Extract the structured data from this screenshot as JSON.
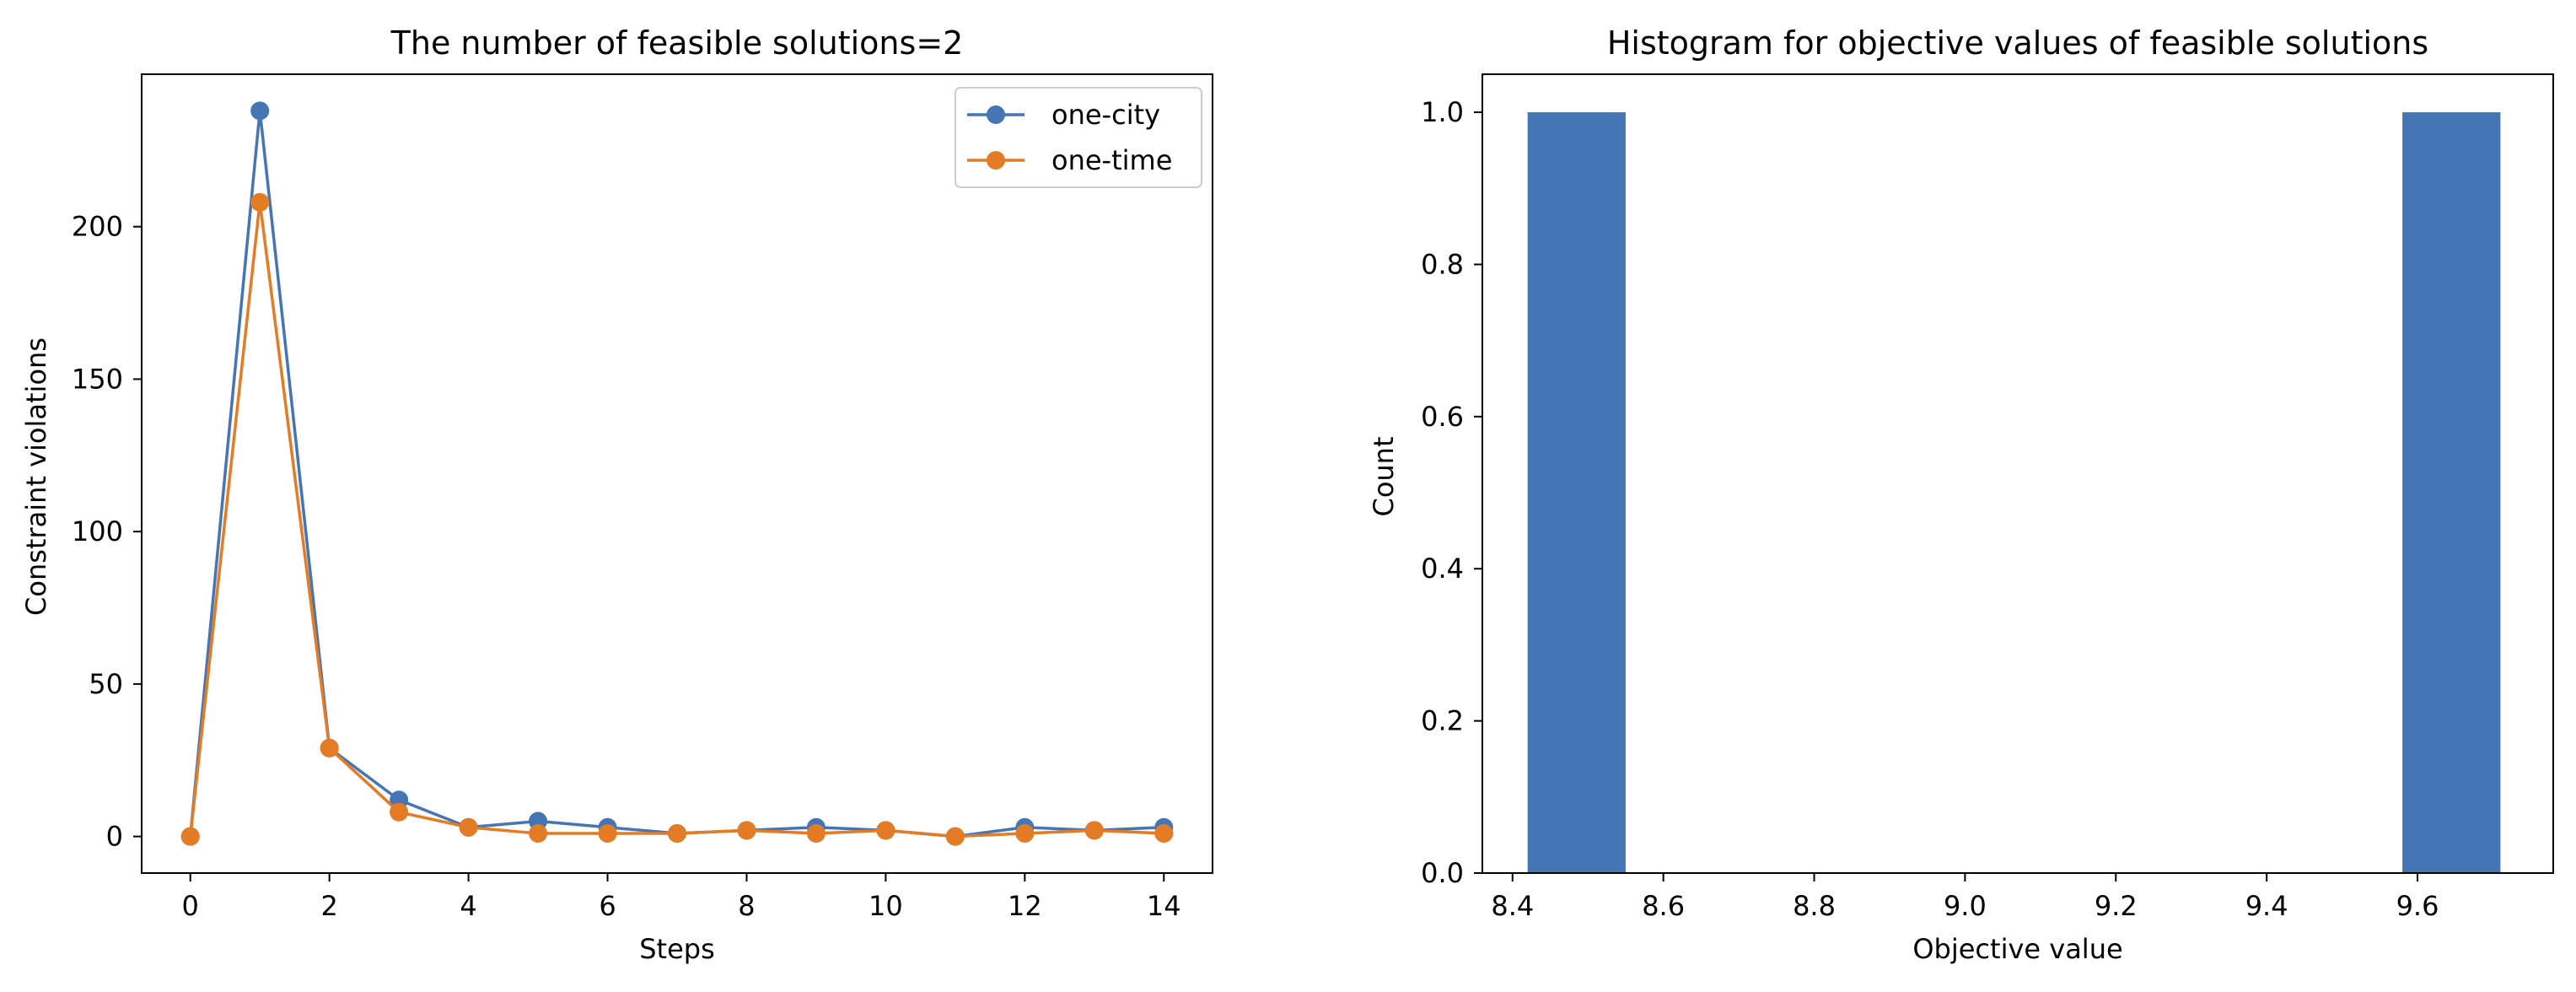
{
  "colors": {
    "series": [
      "#4575b4",
      "#e37c24"
    ],
    "bar": "#4575b4",
    "axis": "#000000"
  },
  "chart_data": [
    {
      "type": "line",
      "title": "The number of feasible solutions=2",
      "xlabel": "Steps",
      "ylabel": "Constraint violations",
      "xlim": [
        -0.7,
        14.7
      ],
      "ylim": [
        -12,
        250
      ],
      "xticks": [
        0,
        2,
        4,
        6,
        8,
        10,
        12,
        14
      ],
      "yticks": [
        0,
        50,
        100,
        150,
        200
      ],
      "x": [
        0,
        1,
        2,
        3,
        4,
        5,
        6,
        7,
        8,
        9,
        10,
        11,
        12,
        13,
        14
      ],
      "series": [
        {
          "name": "one-city",
          "values": [
            0,
            238,
            29,
            12,
            3,
            5,
            3,
            1,
            2,
            3,
            2,
            0,
            3,
            2,
            3
          ]
        },
        {
          "name": "one-time",
          "values": [
            0,
            208,
            29,
            8,
            3,
            1,
            1,
            1,
            2,
            1,
            2,
            0,
            1,
            2,
            1
          ]
        }
      ],
      "legend": "top-right",
      "grid": false,
      "marker": "circle"
    },
    {
      "type": "bar",
      "title": "Histogram for objective values of feasible solutions",
      "xlabel": "Objective value",
      "ylabel": "Count",
      "xlim": [
        8.36,
        9.78
      ],
      "ylim": [
        0,
        1.05
      ],
      "xticks": [
        8.4,
        8.6,
        8.8,
        9.0,
        9.2,
        9.4,
        9.6
      ],
      "yticks": [
        0.0,
        0.2,
        0.4,
        0.6,
        0.8,
        1.0
      ],
      "bins": [
        {
          "from": 8.42,
          "to": 8.55,
          "count": 1
        },
        {
          "from": 9.58,
          "to": 9.71,
          "count": 1
        }
      ],
      "grid": false
    }
  ]
}
